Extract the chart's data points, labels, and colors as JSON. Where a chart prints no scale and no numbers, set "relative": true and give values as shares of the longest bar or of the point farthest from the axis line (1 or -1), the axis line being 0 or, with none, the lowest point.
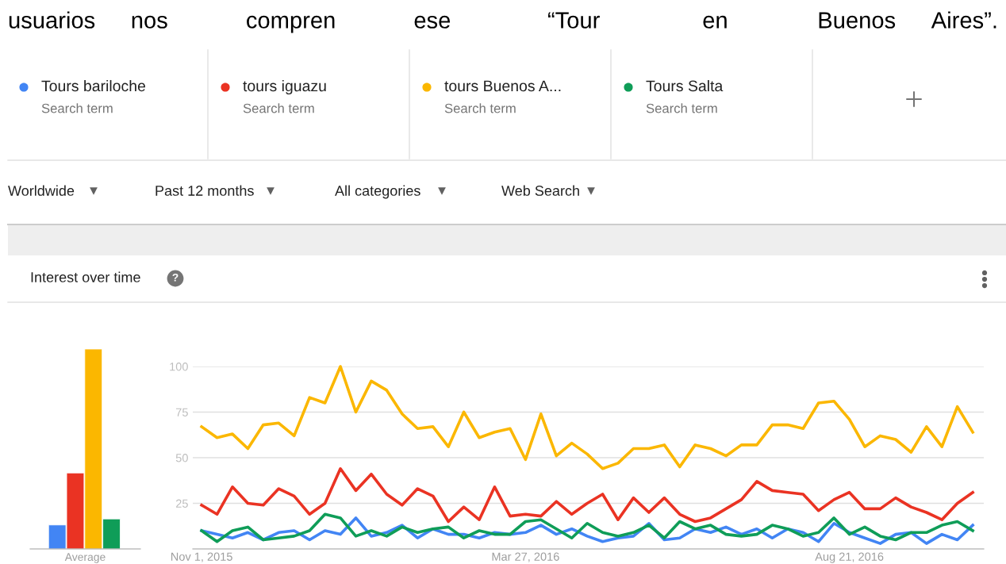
{
  "chart_data": [
    {
      "type": "other",
      "annotations": [
        "usuarios nos compren ese “Tour en Buenos Aires”.",
        "Search term",
        "Search term",
        "Search term",
        "Search term",
        "Worldwide",
        "Past 12 months",
        "All categories",
        "Web Search",
        "Interest over time",
        "?"
      ]
    },
    {
      "type": "bar",
      "relative": true,
      "xlabel": "Average",
      "categories": [
        null,
        null,
        null,
        null
      ],
      "values": [
        0.12,
        0.38,
        1,
        0.15
      ],
      "colors": [
        "#4285f4",
        "#ea3323",
        "#fbb700",
        "#0f9d58"
      ]
    },
    {
      "type": "line",
      "legend": "top",
      "grid": "y",
      "tick_labels": "xy",
      "x": [
        "2015-11-01",
        "2015-11-08",
        "2015-11-15",
        "2015-11-22",
        "2015-11-29",
        "2015-12-06",
        "2015-12-13",
        "2015-12-20",
        "2015-12-27",
        "2016-01-03",
        "2016-01-10",
        "2016-01-17",
        "2016-01-24",
        "2016-01-31",
        "2016-02-07",
        "2016-02-14",
        "2016-02-21",
        "2016-02-28",
        "2016-03-06",
        "2016-03-13",
        "2016-03-20",
        "2016-03-27",
        "2016-04-03",
        "2016-04-10",
        "2016-04-17",
        "2016-04-24",
        "2016-05-01",
        "2016-05-08",
        "2016-05-15",
        "2016-05-22",
        "2016-05-29",
        "2016-06-05",
        "2016-06-12",
        "2016-06-19",
        "2016-06-26",
        "2016-07-03",
        "2016-07-10",
        "2016-07-17",
        "2016-07-24",
        "2016-07-31",
        "2016-08-07",
        "2016-08-14",
        "2016-08-21",
        "2016-08-28",
        "2016-09-04",
        "2016-09-11",
        "2016-09-18",
        "2016-09-25",
        "2016-10-02",
        "2016-10-09",
        "2016-10-16"
      ],
      "xlim": [
        "2015-10-28",
        "2016-10-21"
      ],
      "xticks": [
        {
          "value": "2015-11-01",
          "label": "Nov 1, 2015"
        },
        {
          "value": "2016-03-27",
          "label": "Mar 27, 2016"
        },
        {
          "value": "2016-08-21",
          "label": "Aug 21, 2016"
        }
      ],
      "ylim": [
        0,
        100
      ],
      "yticks": [
        25,
        50,
        75,
        100
      ],
      "series": [
        {
          "name": "Tours bariloche",
          "color": "#4285f4",
          "values": [
            10,
            8,
            6,
            9,
            5,
            9,
            10,
            5,
            10,
            8,
            17,
            7,
            9,
            13,
            6,
            11,
            8,
            8,
            6,
            9,
            8,
            9,
            13,
            8,
            11,
            7,
            4,
            6,
            7,
            14,
            5,
            6,
            11,
            9,
            12,
            8,
            11,
            6,
            11,
            9,
            4,
            14,
            9,
            6,
            3,
            8,
            9,
            3,
            8,
            5,
            13
          ]
        },
        {
          "name": "tours iguazu",
          "color": "#ea3323",
          "values": [
            24,
            19,
            34,
            25,
            24,
            33,
            29,
            19,
            25,
            44,
            32,
            41,
            30,
            24,
            33,
            29,
            15,
            23,
            16,
            34,
            18,
            19,
            18,
            26,
            19,
            25,
            30,
            16,
            28,
            20,
            28,
            19,
            15,
            17,
            22,
            27,
            37,
            32,
            31,
            30,
            21,
            27,
            31,
            22,
            22,
            28,
            23,
            20,
            16,
            25,
            31
          ]
        },
        {
          "name": "tours Buenos A...",
          "color": "#fbb700",
          "values": [
            67,
            61,
            63,
            55,
            68,
            69,
            62,
            83,
            80,
            100,
            75,
            92,
            87,
            74,
            66,
            67,
            56,
            75,
            61,
            64,
            66,
            49,
            74,
            51,
            58,
            52,
            44,
            47,
            55,
            55,
            57,
            45,
            57,
            55,
            51,
            57,
            57,
            68,
            68,
            66,
            80,
            81,
            71,
            56,
            62,
            60,
            53,
            67,
            56,
            78,
            64
          ]
        },
        {
          "name": "Tours Salta",
          "color": "#0f9d58",
          "values": [
            10,
            4,
            10,
            12,
            5,
            6,
            7,
            10,
            19,
            17,
            7,
            10,
            7,
            12,
            9,
            11,
            12,
            6,
            10,
            8,
            8,
            15,
            16,
            11,
            6,
            14,
            9,
            7,
            9,
            13,
            6,
            15,
            11,
            13,
            8,
            7,
            8,
            13,
            11,
            7,
            9,
            17,
            8,
            12,
            7,
            5,
            9,
            9,
            13,
            15,
            10
          ]
        }
      ]
    }
  ]
}
